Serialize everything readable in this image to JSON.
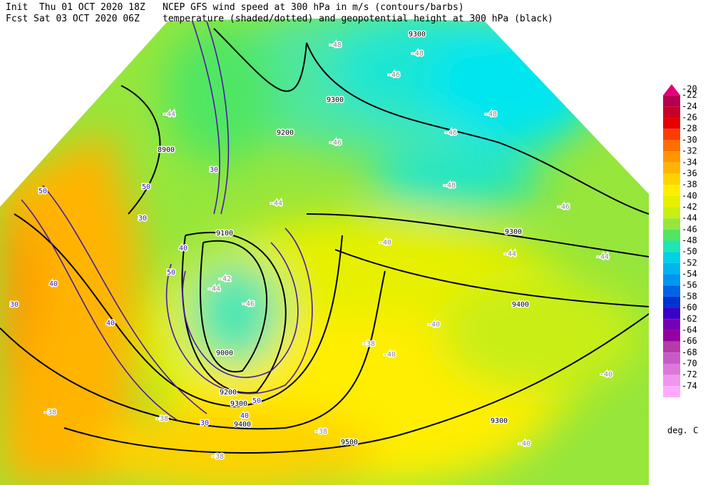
{
  "header": {
    "left": [
      "Init  Thu 01 OCT 2020 18Z",
      "Fcst Sat 03 OCT 2020 06Z"
    ],
    "right": [
      "NCEP GFS wind speed at 300 hPa in m/s (contours/barbs)",
      "temperature (shaded/dotted) and geopotential height at 300 hPa (black)"
    ]
  },
  "map": {
    "height_labels": [
      9300,
      9300,
      8900,
      9200,
      9300,
      9400,
      9100,
      9000,
      9200,
      9300,
      9400,
      9500,
      9300
    ],
    "temperature_labels": [
      -48,
      -48,
      -46,
      -44,
      -46,
      -48,
      -46,
      -48,
      -46,
      -44,
      -40,
      -44,
      -44,
      -42,
      -44,
      -46,
      -40,
      -38,
      -40,
      -40,
      -40,
      -38,
      -38,
      -38,
      -38
    ],
    "wind_labels": [
      30,
      50,
      50,
      30,
      40,
      50,
      40,
      30,
      40,
      30,
      40,
      50
    ]
  },
  "colorbar": {
    "levels": [
      -20,
      -22,
      -24,
      -26,
      -28,
      -30,
      -32,
      -34,
      -36,
      -38,
      -40,
      -42,
      -44,
      -46,
      -48,
      -50,
      -52,
      -54,
      -56,
      -58,
      -60,
      -62,
      -64,
      -66,
      -68,
      -70,
      -72,
      -74
    ],
    "colors": [
      "#e0007a",
      "#b4004e",
      "#c80028",
      "#e80000",
      "#ff3c00",
      "#ff6e00",
      "#ff9600",
      "#ffb400",
      "#ffd200",
      "#ffee00",
      "#e6f000",
      "#c8ee14",
      "#96e63c",
      "#50e664",
      "#1ee6b4",
      "#00d2e6",
      "#00b4f0",
      "#0096f0",
      "#0064e6",
      "#0032d2",
      "#3c00c8",
      "#7800b4",
      "#9600a0",
      "#b43caa",
      "#c85ac8",
      "#dc78dc",
      "#f096f0",
      "#ffaaff"
    ],
    "unit": "deg. C"
  }
}
